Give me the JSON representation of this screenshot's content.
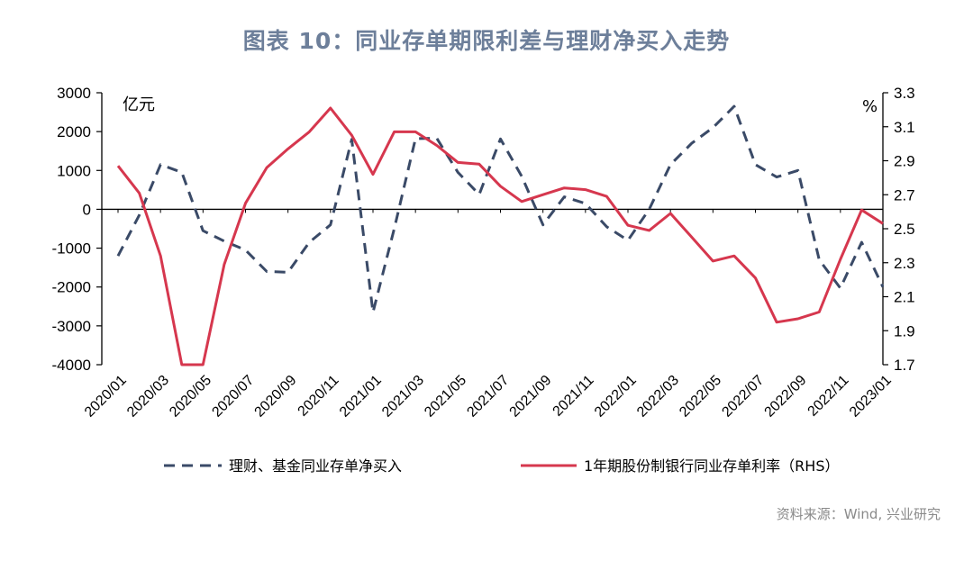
{
  "title": "图表 10：同业存单期限利差与理财净买入走势",
  "source": "资料来源：Wind, 兴业研究",
  "colors": {
    "series_dashed": "#3a4a67",
    "series_red": "#d6374e",
    "title": "#6d7f9a"
  },
  "chart_data": {
    "type": "line",
    "left_unit": "亿元",
    "right_unit": "%",
    "y_left": {
      "min": -4000,
      "max": 3000,
      "ticks": [
        3000,
        2000,
        1000,
        0,
        -1000,
        -2000,
        -3000,
        -4000
      ]
    },
    "y_right": {
      "min": 1.7,
      "max": 3.3,
      "ticks": [
        3.3,
        3.1,
        2.9,
        2.7,
        2.5,
        2.3,
        2.1,
        1.9,
        1.7
      ]
    },
    "x_labels": [
      "2020/01",
      "2020/03",
      "2020/05",
      "2020/07",
      "2020/09",
      "2020/11",
      "2021/01",
      "2021/03",
      "2021/05",
      "2021/07",
      "2021/09",
      "2021/11",
      "2022/01",
      "2022/03",
      "2022/05",
      "2022/07",
      "2022/09",
      "2022/11",
      "2023/01"
    ],
    "categories": [
      "2020/01",
      "2020/02",
      "2020/03",
      "2020/04",
      "2020/05",
      "2020/06",
      "2020/07",
      "2020/08",
      "2020/09",
      "2020/10",
      "2020/11",
      "2020/12",
      "2021/01",
      "2021/02",
      "2021/03",
      "2021/04",
      "2021/05",
      "2021/06",
      "2021/07",
      "2021/08",
      "2021/09",
      "2021/10",
      "2021/11",
      "2021/12",
      "2022/01",
      "2022/02",
      "2022/03",
      "2022/04",
      "2022/05",
      "2022/06",
      "2022/07",
      "2022/08",
      "2022/09",
      "2022/10",
      "2022/11",
      "2022/12",
      "2023/01"
    ],
    "series": [
      {
        "name": "理财、基金同业存单净买入",
        "axis": "left",
        "style": "dashed",
        "values": [
          -1200,
          -150,
          1150,
          950,
          -550,
          -820,
          -1050,
          -1600,
          -1620,
          -850,
          -400,
          1800,
          -2650,
          -500,
          1820,
          1830,
          950,
          380,
          1810,
          850,
          -400,
          320,
          150,
          -450,
          -800,
          0,
          1150,
          1700,
          2100,
          2650,
          1150,
          830,
          1000,
          -1300,
          -2030,
          -850,
          -2000
        ]
      },
      {
        "name": "1年期股份制银行同业存单利率（RHS）",
        "axis": "right",
        "style": "solid",
        "values": [
          2.87,
          2.71,
          2.34,
          1.63,
          1.67,
          2.29,
          2.65,
          2.86,
          2.97,
          3.07,
          3.21,
          3.05,
          2.82,
          3.07,
          3.07,
          2.99,
          2.89,
          2.88,
          2.75,
          2.66,
          2.7,
          2.74,
          2.73,
          2.69,
          2.52,
          2.49,
          2.59,
          2.45,
          2.31,
          2.34,
          2.21,
          1.95,
          1.97,
          2.01,
          2.32,
          2.61,
          2.53
        ]
      }
    ]
  }
}
